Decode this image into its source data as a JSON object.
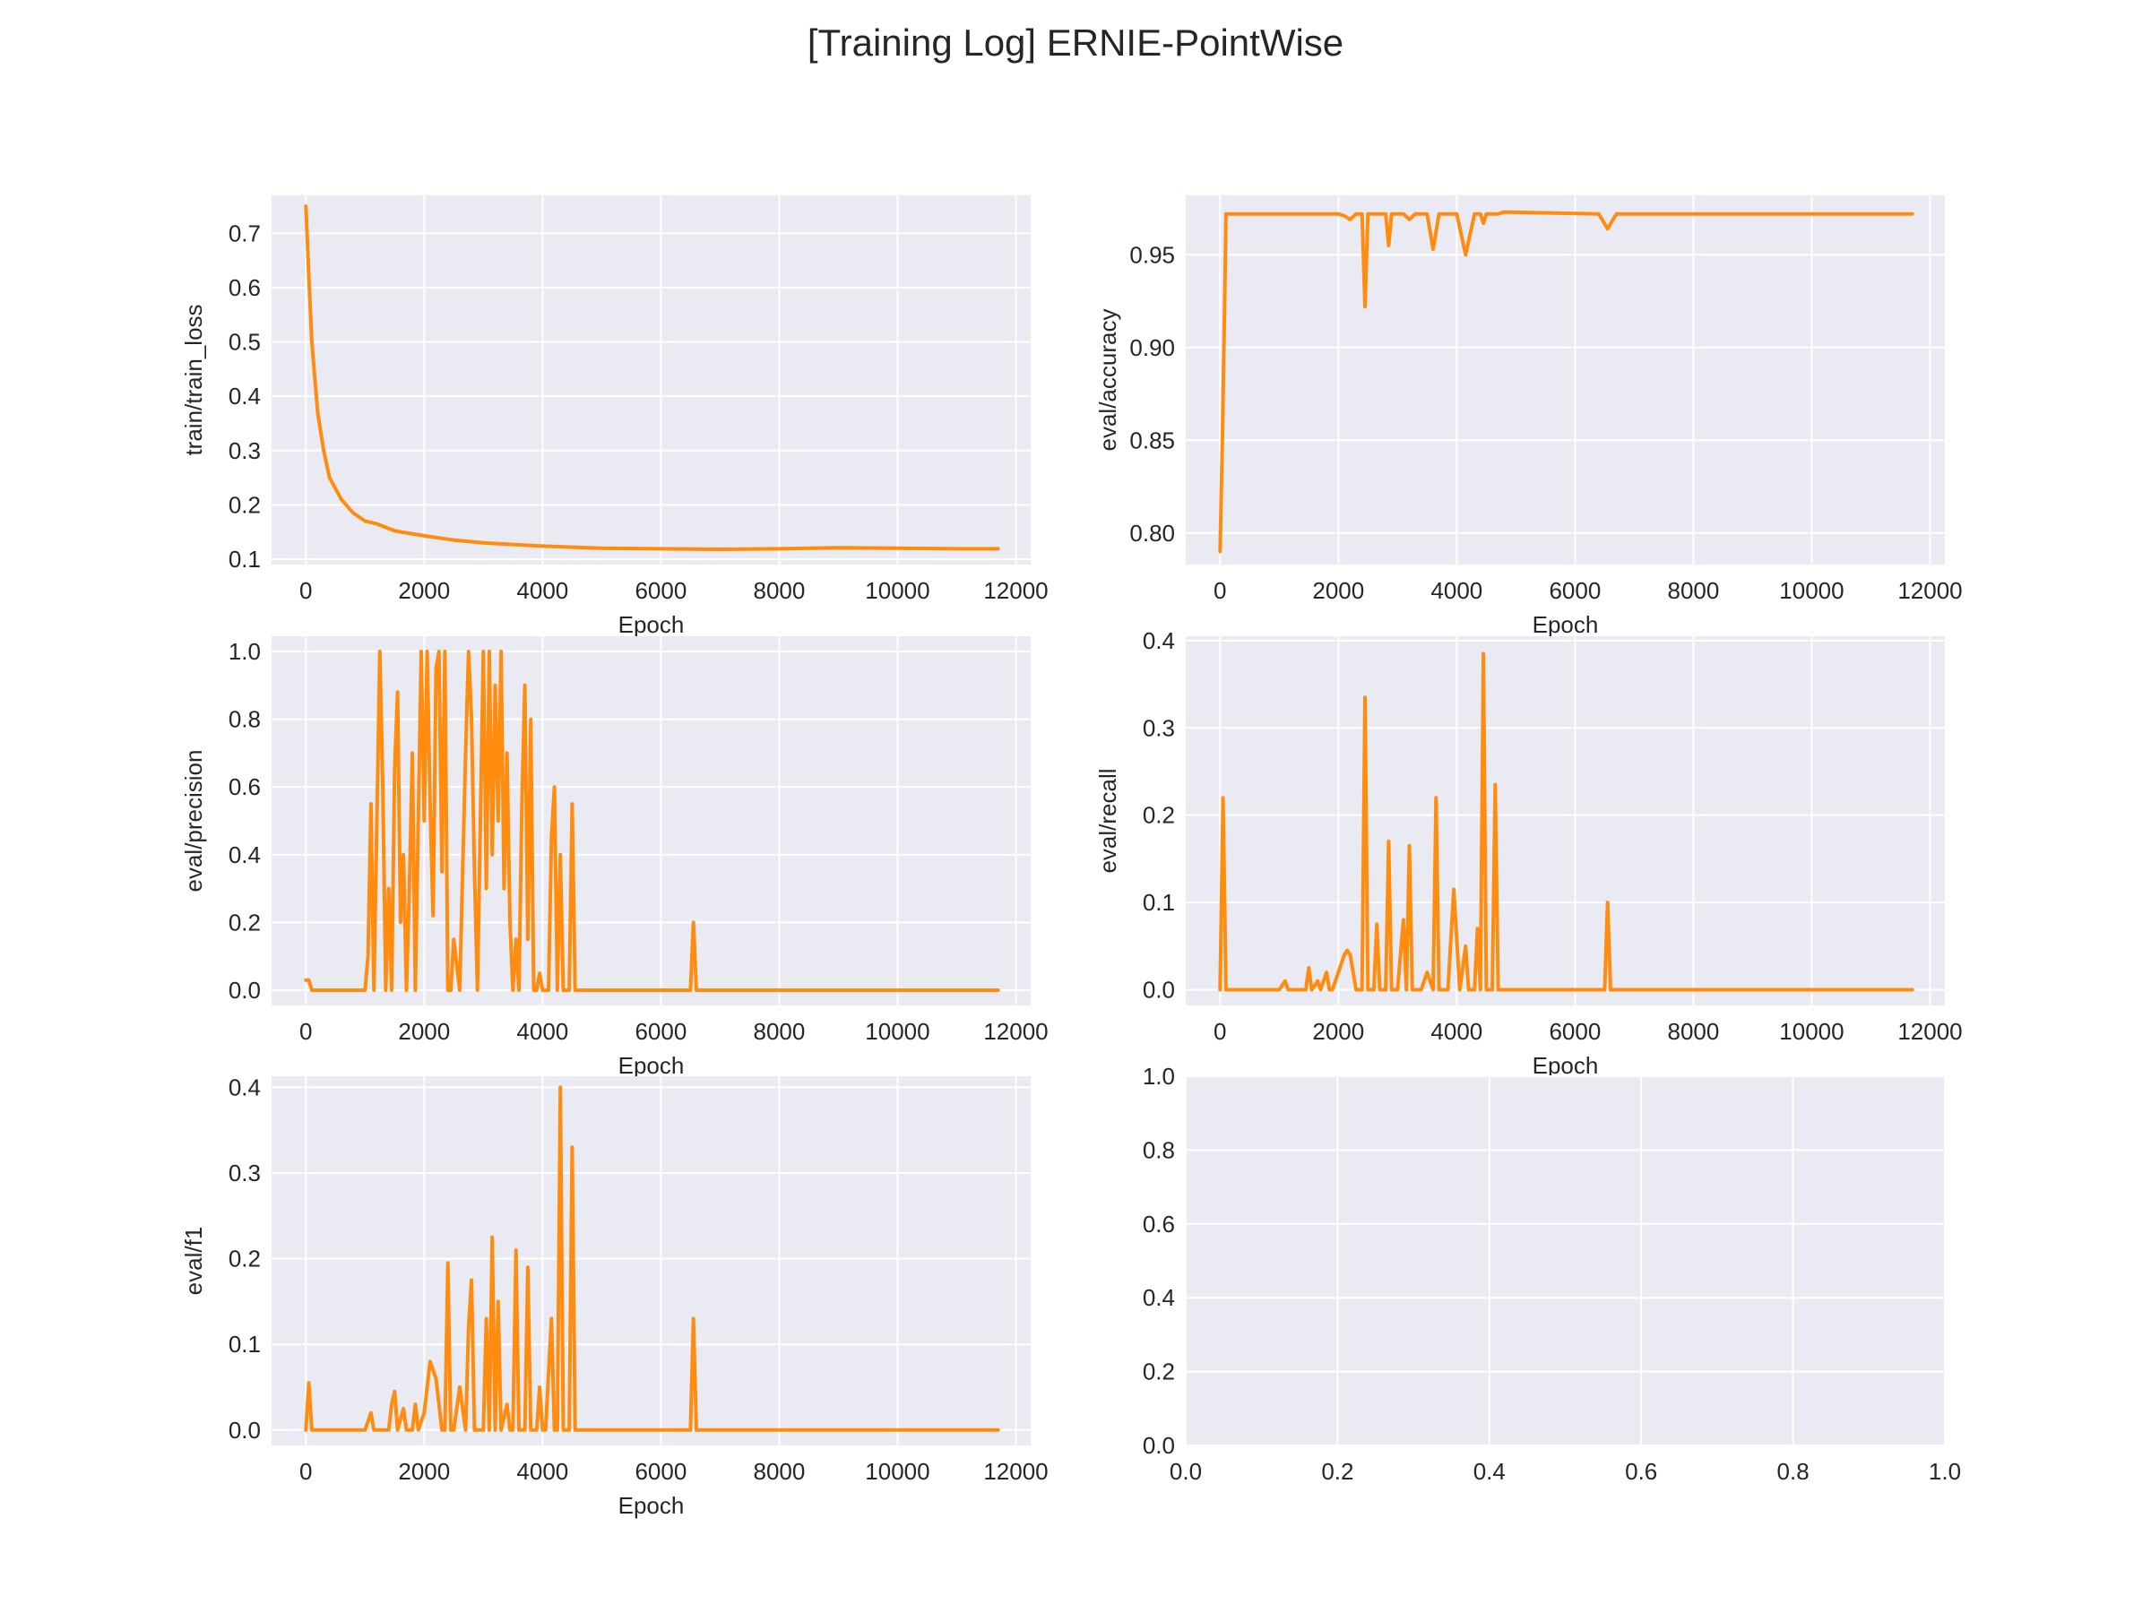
{
  "figure_title": "[Training Log] ERNIE-PointWise",
  "colors": {
    "series": "#ff8c0e",
    "panel_bg": "#eaeaf2",
    "grid": "#ffffff",
    "text": "#262626"
  },
  "chart_data": [
    {
      "type": "line",
      "ylabel": "train/train_loss",
      "xlabel": "Epoch",
      "xlim": [
        -580,
        12250
      ],
      "ylim": [
        0.09,
        0.77
      ],
      "xticks": [
        0,
        2000,
        4000,
        6000,
        8000,
        10000,
        12000
      ],
      "yticks": [
        0.1,
        0.2,
        0.3,
        0.4,
        0.5,
        0.6,
        0.7
      ],
      "ytick_labels": [
        "0.1",
        "0.2",
        "0.3",
        "0.4",
        "0.5",
        "0.6",
        "0.7"
      ],
      "grid": true,
      "series": [
        {
          "x": [
            0,
            50,
            100,
            200,
            300,
            400,
            600,
            800,
            1000,
            1200,
            1500,
            2000,
            2500,
            3000,
            3500,
            4000,
            4500,
            5000,
            6000,
            7000,
            8000,
            9000,
            10000,
            11000,
            11700
          ],
          "y": [
            0.75,
            0.62,
            0.5,
            0.37,
            0.3,
            0.25,
            0.21,
            0.185,
            0.17,
            0.165,
            0.152,
            0.143,
            0.135,
            0.13,
            0.127,
            0.124,
            0.122,
            0.12,
            0.119,
            0.118,
            0.119,
            0.121,
            0.12,
            0.119,
            0.119
          ]
        }
      ]
    },
    {
      "type": "line",
      "ylabel": "eval/accuracy",
      "xlabel": "Epoch",
      "xlim": [
        -580,
        12250
      ],
      "ylim": [
        0.783,
        0.982
      ],
      "xticks": [
        0,
        2000,
        4000,
        6000,
        8000,
        10000,
        12000
      ],
      "yticks": [
        0.8,
        0.85,
        0.9,
        0.95
      ],
      "ytick_labels": [
        "0.80",
        "0.85",
        "0.90",
        "0.95"
      ],
      "grid": true,
      "series": [
        {
          "x": [
            0,
            40,
            80,
            100,
            300,
            2000,
            2100,
            2200,
            2300,
            2400,
            2450,
            2500,
            2600,
            2800,
            2850,
            2900,
            3100,
            3200,
            3300,
            3500,
            3600,
            3700,
            4000,
            4150,
            4300,
            4400,
            4450,
            4500,
            4700,
            4800,
            6400,
            6550,
            6700,
            11700
          ],
          "y": [
            0.79,
            0.85,
            0.93,
            0.972,
            0.972,
            0.972,
            0.971,
            0.969,
            0.972,
            0.972,
            0.922,
            0.972,
            0.972,
            0.972,
            0.955,
            0.972,
            0.972,
            0.969,
            0.972,
            0.972,
            0.953,
            0.972,
            0.972,
            0.95,
            0.972,
            0.972,
            0.967,
            0.972,
            0.972,
            0.973,
            0.972,
            0.964,
            0.972,
            0.972
          ]
        }
      ]
    },
    {
      "type": "line",
      "ylabel": "eval/precision",
      "xlabel": "Epoch",
      "xlim": [
        -580,
        12250
      ],
      "ylim": [
        -0.045,
        1.045
      ],
      "xticks": [
        0,
        2000,
        4000,
        6000,
        8000,
        10000,
        12000
      ],
      "yticks": [
        0.0,
        0.2,
        0.4,
        0.6,
        0.8,
        1.0
      ],
      "ytick_labels": [
        "0.0",
        "0.2",
        "0.4",
        "0.6",
        "0.8",
        "1.0"
      ],
      "grid": true,
      "series": [
        {
          "x": [
            0,
            50,
            100,
            1000,
            1050,
            1100,
            1150,
            1200,
            1250,
            1300,
            1350,
            1400,
            1450,
            1500,
            1550,
            1600,
            1650,
            1700,
            1750,
            1800,
            1850,
            1900,
            1950,
            2000,
            2050,
            2100,
            2150,
            2200,
            2250,
            2300,
            2350,
            2400,
            2450,
            2500,
            2600,
            2700,
            2750,
            2800,
            2850,
            2900,
            2950,
            3000,
            3050,
            3100,
            3150,
            3200,
            3250,
            3300,
            3350,
            3400,
            3450,
            3500,
            3550,
            3600,
            3650,
            3700,
            3750,
            3800,
            3850,
            3900,
            3950,
            4000,
            4100,
            4150,
            4200,
            4250,
            4300,
            4350,
            4400,
            4450,
            4500,
            4550,
            4600,
            4650,
            4700,
            4750,
            6400,
            6500,
            6550,
            6600,
            6700,
            11700
          ],
          "y": [
            0.03,
            0.03,
            0.0,
            0.0,
            0.1,
            0.55,
            0.0,
            0.5,
            1.0,
            0.6,
            0.0,
            0.3,
            0.0,
            0.65,
            0.88,
            0.2,
            0.4,
            0.0,
            0.3,
            0.7,
            0.0,
            0.5,
            1.0,
            0.5,
            1.0,
            0.55,
            0.22,
            0.95,
            1.0,
            0.35,
            1.0,
            0.0,
            0.0,
            0.15,
            0.0,
            0.7,
            1.0,
            0.8,
            0.35,
            0.0,
            0.5,
            1.0,
            0.3,
            1.0,
            0.4,
            0.9,
            0.5,
            1.0,
            0.3,
            0.7,
            0.2,
            0.0,
            0.15,
            0.0,
            0.55,
            0.9,
            0.15,
            0.8,
            0.0,
            0.0,
            0.05,
            0.0,
            0.0,
            0.45,
            0.6,
            0.0,
            0.4,
            0.0,
            0.0,
            0.0,
            0.55,
            0.0,
            0.0,
            0.0,
            0.0,
            0.0,
            0.0,
            0.0,
            0.2,
            0.0,
            0.0,
            0.0
          ]
        }
      ]
    },
    {
      "type": "line",
      "ylabel": "eval/recall",
      "xlabel": "Epoch",
      "xlim": [
        -580,
        12250
      ],
      "ylim": [
        -0.018,
        0.405
      ],
      "xticks": [
        0,
        2000,
        4000,
        6000,
        8000,
        10000,
        12000
      ],
      "yticks": [
        0.0,
        0.1,
        0.2,
        0.3,
        0.4
      ],
      "ytick_labels": [
        "0.0",
        "0.1",
        "0.2",
        "0.3",
        "0.4"
      ],
      "grid": true,
      "series": [
        {
          "x": [
            0,
            50,
            100,
            150,
            1000,
            1100,
            1150,
            1450,
            1500,
            1550,
            1650,
            1700,
            1800,
            1850,
            1900,
            2100,
            2150,
            2200,
            2300,
            2400,
            2450,
            2500,
            2600,
            2650,
            2700,
            2800,
            2850,
            2900,
            3000,
            3100,
            3150,
            3200,
            3250,
            3400,
            3500,
            3600,
            3650,
            3700,
            3850,
            3950,
            4050,
            4150,
            4200,
            4250,
            4300,
            4350,
            4400,
            4450,
            4500,
            4550,
            4600,
            4650,
            4700,
            4750,
            6450,
            6500,
            6550,
            6600,
            6700,
            11700
          ],
          "y": [
            0.0,
            0.22,
            0.0,
            0.0,
            0.0,
            0.01,
            0.0,
            0.0,
            0.025,
            0.0,
            0.01,
            0.0,
            0.02,
            0.0,
            0.0,
            0.04,
            0.045,
            0.04,
            0.0,
            0.0,
            0.335,
            0.0,
            0.0,
            0.075,
            0.0,
            0.0,
            0.17,
            0.0,
            0.0,
            0.08,
            0.0,
            0.165,
            0.0,
            0.0,
            0.02,
            0.0,
            0.22,
            0.0,
            0.0,
            0.115,
            0.0,
            0.05,
            0.0,
            0.0,
            0.0,
            0.07,
            0.0,
            0.385,
            0.0,
            0.0,
            0.0,
            0.235,
            0.0,
            0.0,
            0.0,
            0.0,
            0.1,
            0.0,
            0.0,
            0.0
          ]
        }
      ]
    },
    {
      "type": "line",
      "ylabel": "eval/f1",
      "xlabel": "Epoch",
      "xlim": [
        -580,
        12250
      ],
      "ylim": [
        -0.018,
        0.413
      ],
      "xticks": [
        0,
        2000,
        4000,
        6000,
        8000,
        10000,
        12000
      ],
      "yticks": [
        0.0,
        0.1,
        0.2,
        0.3,
        0.4
      ],
      "ytick_labels": [
        "0.0",
        "0.1",
        "0.2",
        "0.3",
        "0.4"
      ],
      "grid": true,
      "series": [
        {
          "x": [
            0,
            50,
            100,
            150,
            1000,
            1100,
            1150,
            1400,
            1450,
            1500,
            1550,
            1650,
            1700,
            1800,
            1850,
            1900,
            2000,
            2100,
            2200,
            2300,
            2350,
            2400,
            2450,
            2500,
            2600,
            2700,
            2750,
            2800,
            2850,
            2900,
            3000,
            3050,
            3100,
            3150,
            3200,
            3250,
            3300,
            3400,
            3450,
            3500,
            3550,
            3600,
            3650,
            3700,
            3750,
            3800,
            3850,
            3900,
            3950,
            4000,
            4050,
            4150,
            4200,
            4250,
            4300,
            4350,
            4400,
            4450,
            4500,
            4550,
            4600,
            4650,
            4700,
            4750,
            6450,
            6500,
            6550,
            6600,
            6700,
            11700
          ],
          "y": [
            0.0,
            0.055,
            0.0,
            0.0,
            0.0,
            0.02,
            0.0,
            0.0,
            0.03,
            0.045,
            0.0,
            0.025,
            0.0,
            0.0,
            0.03,
            0.0,
            0.02,
            0.08,
            0.06,
            0.0,
            0.0,
            0.195,
            0.0,
            0.0,
            0.05,
            0.0,
            0.12,
            0.175,
            0.0,
            0.0,
            0.0,
            0.13,
            0.0,
            0.225,
            0.0,
            0.15,
            0.0,
            0.03,
            0.0,
            0.0,
            0.21,
            0.0,
            0.0,
            0.0,
            0.19,
            0.0,
            0.0,
            0.0,
            0.05,
            0.0,
            0.0,
            0.13,
            0.0,
            0.0,
            0.4,
            0.0,
            0.0,
            0.0,
            0.33,
            0.0,
            0.0,
            0.0,
            0.0,
            0.0,
            0.0,
            0.0,
            0.13,
            0.0,
            0.0,
            0.0
          ]
        }
      ]
    },
    {
      "type": "line",
      "xlim": [
        0.0,
        1.0
      ],
      "ylim": [
        0.0,
        1.0
      ],
      "xticks": [
        0.0,
        0.2,
        0.4,
        0.6,
        0.8,
        1.0
      ],
      "xtick_labels": [
        "0.0",
        "0.2",
        "0.4",
        "0.6",
        "0.8",
        "1.0"
      ],
      "yticks": [
        0.0,
        0.2,
        0.4,
        0.6,
        0.8,
        1.0
      ],
      "ytick_labels": [
        "0.0",
        "0.2",
        "0.4",
        "0.6",
        "0.8",
        "1.0"
      ],
      "grid": true,
      "series": []
    }
  ]
}
